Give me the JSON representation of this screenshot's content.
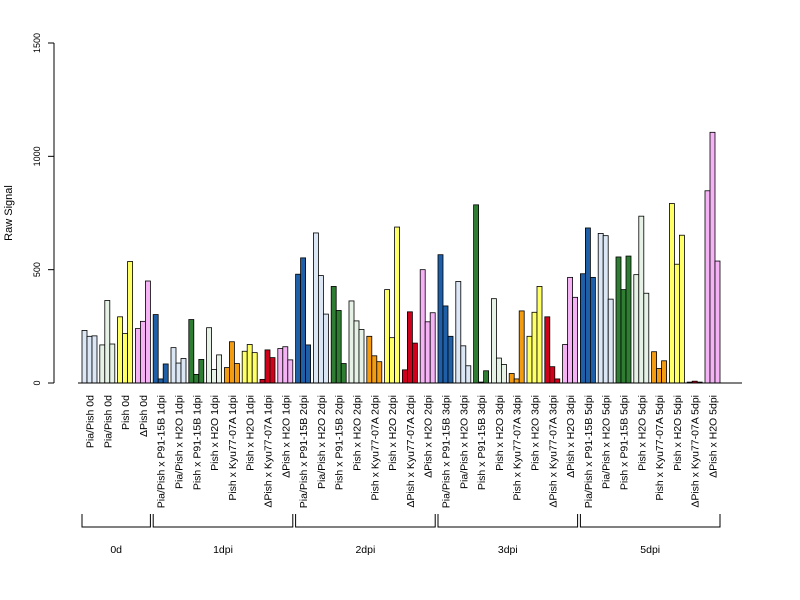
{
  "chart_data": {
    "type": "bar",
    "title": "",
    "ylabel": "Raw Signal",
    "xlabel": "",
    "ylim": [
      0,
      1500
    ],
    "yticks": [
      0,
      500,
      1000,
      1500
    ],
    "grid": false,
    "legend": "none",
    "categories": [
      {
        "label": "Pia/Pish 0d",
        "color": "#dbe7f5",
        "values": [
          232,
          206,
          208
        ]
      },
      {
        "label": "Pia/Pish 0d",
        "color": "#e6f2e6",
        "values": [
          168,
          364,
          172
        ]
      },
      {
        "label": "Pish 0d",
        "color": "#ffff66",
        "values": [
          292,
          218,
          536
        ]
      },
      {
        "label": "ΔPish 0d",
        "color": "#f5b3f5",
        "values": [
          240,
          272,
          450
        ]
      },
      {
        "label": "Pia/Pish x P91-15B 1dpi",
        "color": "#1f5fa8",
        "values": [
          302,
          18,
          84
        ]
      },
      {
        "label": "Pia/Pish x H2O 1dpi",
        "color": "#dbe7f5",
        "values": [
          156,
          88,
          108
        ]
      },
      {
        "label": "Pish x P91-15B 1dpi",
        "color": "#2e7d32",
        "values": [
          280,
          38,
          104
        ]
      },
      {
        "label": "Pish x H2O 1dpi",
        "color": "#e6f2e6",
        "values": [
          244,
          60,
          124
        ]
      },
      {
        "label": "Pish x Kyu77-07A 1dpi",
        "color": "#f39c12",
        "values": [
          68,
          182,
          86
        ]
      },
      {
        "label": "Pish x H2O 1dpi",
        "color": "#ffff66",
        "values": [
          140,
          170,
          134
        ]
      },
      {
        "label": "ΔPish x Kyu77-07A 1dpi",
        "color": "#d0021b",
        "values": [
          16,
          146,
          112
        ]
      },
      {
        "label": "ΔPish x H2O 1dpi",
        "color": "#f5b3f5",
        "values": [
          152,
          160,
          102
        ]
      },
      {
        "label": "Pia/Pish x P91-15B 2dpi",
        "color": "#1f5fa8",
        "values": [
          480,
          552,
          168
        ]
      },
      {
        "label": "Pia/Pish x H2O 2dpi",
        "color": "#dbe7f5",
        "values": [
          662,
          474,
          304
        ]
      },
      {
        "label": "Pish x P91-15B 2dpi",
        "color": "#2e7d32",
        "values": [
          426,
          320,
          86
        ]
      },
      {
        "label": "Pish x H2O 2dpi",
        "color": "#e6f2e6",
        "values": [
          362,
          274,
          236
        ]
      },
      {
        "label": "Pish x Kyu77-07A 2dpi",
        "color": "#f39c12",
        "values": [
          206,
          120,
          94
        ]
      },
      {
        "label": "Pish x H2O 2dpi",
        "color": "#ffff66",
        "values": [
          412,
          200,
          688
        ]
      },
      {
        "label": "ΔPish x Kyu77-07A 2dpi",
        "color": "#d0021b",
        "values": [
          58,
          314,
          176
        ]
      },
      {
        "label": "ΔPish x H2O 2dpi",
        "color": "#f5b3f5",
        "values": [
          500,
          270,
          310
        ]
      },
      {
        "label": "Pia/Pish x P91-15B 3dpi",
        "color": "#1f5fa8",
        "values": [
          566,
          340,
          206
        ]
      },
      {
        "label": "Pia/Pish x H2O 3dpi",
        "color": "#dbe7f5",
        "values": [
          448,
          164,
          76
        ]
      },
      {
        "label": "Pish x P91-15B 3dpi",
        "color": "#2e7d32",
        "values": [
          786,
          4,
          54
        ]
      },
      {
        "label": "Pish x H2O 3dpi",
        "color": "#e6f2e6",
        "values": [
          372,
          110,
          82
        ]
      },
      {
        "label": "Pish x Kyu77-07A 3dpi",
        "color": "#f39c12",
        "values": [
          42,
          18,
          318
        ]
      },
      {
        "label": "Pish x H2O 3dpi",
        "color": "#ffff66",
        "values": [
          206,
          312,
          426
        ]
      },
      {
        "label": "ΔPish x Kyu77-07A 3dpi",
        "color": "#d0021b",
        "values": [
          292,
          72,
          18
        ]
      },
      {
        "label": "ΔPish x H2O 3dpi",
        "color": "#f5b3f5",
        "values": [
          170,
          466,
          378
        ]
      },
      {
        "label": "Pia/Pish x P91-15B 5dpi",
        "color": "#1f5fa8",
        "values": [
          482,
          684,
          466
        ]
      },
      {
        "label": "Pia/Pish x H2O 5dpi",
        "color": "#dbe7f5",
        "values": [
          660,
          650,
          370
        ]
      },
      {
        "label": "Pish x P91-15B 5dpi",
        "color": "#2e7d32",
        "values": [
          556,
          412,
          560
        ]
      },
      {
        "label": "Pish x H2O 5dpi",
        "color": "#e6f2e6",
        "values": [
          478,
          736,
          396
        ]
      },
      {
        "label": "Pish x Kyu77-07A 5dpi",
        "color": "#f39c12",
        "values": [
          138,
          64,
          98
        ]
      },
      {
        "label": "Pish x H2O 5dpi",
        "color": "#ffff66",
        "values": [
          792,
          524,
          652
        ]
      },
      {
        "label": "ΔPish x Kyu77-07A 5dpi",
        "color": "#d0021b",
        "values": [
          4,
          8,
          4
        ]
      },
      {
        "label": "ΔPish x H2O 5dpi",
        "color": "#f5b3f5",
        "values": [
          848,
          1106,
          538
        ]
      }
    ],
    "groups": [
      {
        "label": "0d",
        "start": 0,
        "end": 3
      },
      {
        "label": "1dpi",
        "start": 4,
        "end": 11
      },
      {
        "label": "2dpi",
        "start": 12,
        "end": 19
      },
      {
        "label": "3dpi",
        "start": 20,
        "end": 27
      },
      {
        "label": "5dpi",
        "start": 28,
        "end": 35
      }
    ]
  }
}
